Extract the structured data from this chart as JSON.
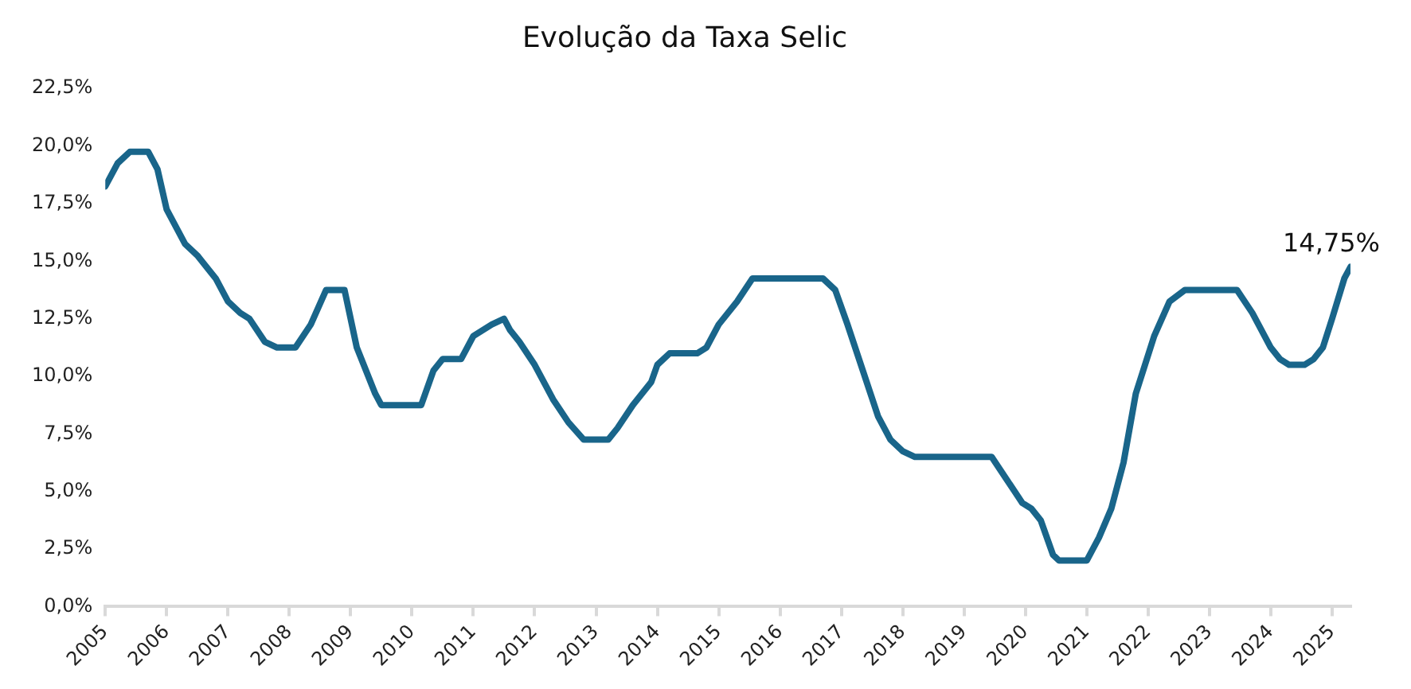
{
  "chart_data": {
    "type": "line",
    "title": "Evolução da Taxa Selic",
    "x": [
      2005.0,
      2005.2,
      2005.4,
      2005.7,
      2005.85,
      2006.0,
      2006.3,
      2006.5,
      2006.8,
      2007.0,
      2007.2,
      2007.35,
      2007.6,
      2007.8,
      2008.1,
      2008.35,
      2008.6,
      2008.9,
      2009.1,
      2009.4,
      2009.5,
      2010.15,
      2010.35,
      2010.5,
      2010.8,
      2011.0,
      2011.3,
      2011.5,
      2011.6,
      2011.75,
      2012.0,
      2012.3,
      2012.55,
      2012.8,
      2013.2,
      2013.35,
      2013.6,
      2013.9,
      2014.0,
      2014.2,
      2014.65,
      2014.8,
      2015.0,
      2015.3,
      2015.55,
      2016.7,
      2016.9,
      2017.1,
      2017.35,
      2017.6,
      2017.8,
      2018.0,
      2018.2,
      2019.45,
      2019.7,
      2019.95,
      2020.1,
      2020.25,
      2020.45,
      2020.55,
      2021.0,
      2021.2,
      2021.4,
      2021.6,
      2021.8,
      2022.1,
      2022.35,
      2022.6,
      2023.45,
      2023.7,
      2024.0,
      2024.15,
      2024.3,
      2024.55,
      2024.7,
      2024.85,
      2025.0,
      2025.2,
      2025.3
    ],
    "series": [
      {
        "color": "#19658a",
        "values": [
          18.25,
          19.25,
          19.75,
          19.75,
          19.0,
          17.25,
          15.75,
          15.25,
          14.25,
          13.25,
          12.75,
          12.5,
          11.5,
          11.25,
          11.25,
          12.25,
          13.75,
          13.75,
          11.25,
          9.25,
          8.75,
          8.75,
          10.25,
          10.75,
          10.75,
          11.75,
          12.25,
          12.5,
          12.0,
          11.5,
          10.5,
          9.0,
          8.0,
          7.25,
          7.25,
          7.75,
          8.75,
          9.75,
          10.5,
          11.0,
          11.0,
          11.25,
          12.25,
          13.25,
          14.25,
          14.25,
          13.75,
          12.25,
          10.25,
          8.25,
          7.25,
          6.75,
          6.5,
          6.5,
          5.5,
          4.5,
          4.25,
          3.75,
          2.25,
          2.0,
          2.0,
          3.0,
          4.25,
          6.25,
          9.25,
          11.75,
          13.25,
          13.75,
          13.75,
          12.75,
          11.25,
          10.75,
          10.5,
          10.5,
          10.75,
          11.25,
          12.5,
          14.25,
          14.75
        ]
      }
    ],
    "xlim": [
      2005,
      2025.3
    ],
    "xticks": [
      2005,
      2006,
      2007,
      2008,
      2009,
      2010,
      2011,
      2012,
      2013,
      2014,
      2015,
      2016,
      2017,
      2018,
      2019,
      2020,
      2021,
      2022,
      2023,
      2024,
      2025
    ],
    "ylim": [
      0,
      22.5
    ],
    "yticks": [
      {
        "value": 0,
        "label": "0,0%"
      },
      {
        "value": 2.5,
        "label": "2,5%"
      },
      {
        "value": 5,
        "label": "5,0%"
      },
      {
        "value": 7.5,
        "label": "7,5%"
      },
      {
        "value": 10,
        "label": "10,0%"
      },
      {
        "value": 12.5,
        "label": "12,5%"
      },
      {
        "value": 15,
        "label": "15,0%"
      },
      {
        "value": 17.5,
        "label": "17,5%"
      },
      {
        "value": 20,
        "label": "20,0%"
      },
      {
        "value": 22.5,
        "label": "22,5%"
      }
    ],
    "annotations": [
      {
        "text": "14,75%",
        "x": 2025.3,
        "y": 14.75
      }
    ],
    "grid": false,
    "legend": false,
    "marker": "none",
    "line_style": "solid"
  }
}
